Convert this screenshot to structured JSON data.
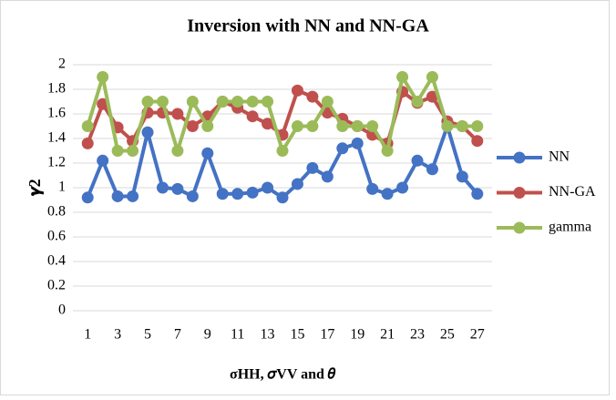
{
  "chart_data": {
    "type": "line",
    "title": "Inversion with NN and NN-GA",
    "x_label": "σHH, 𝜎VV and 𝜃",
    "y_label": "𝜸2",
    "categories": [
      "1",
      null,
      "3",
      null,
      "5",
      null,
      "7",
      null,
      "9",
      null,
      "11",
      null,
      "13",
      null,
      "15",
      null,
      "17",
      null,
      "19",
      null,
      "21",
      null,
      "23",
      null,
      "25",
      null,
      "27"
    ],
    "series": [
      {
        "name": "NN",
        "color": "#4472c4",
        "values": [
          0.92,
          1.22,
          0.93,
          0.93,
          1.45,
          1.0,
          0.99,
          0.93,
          1.28,
          0.95,
          0.95,
          0.96,
          1.0,
          0.92,
          1.03,
          1.16,
          1.09,
          1.32,
          1.36,
          0.99,
          0.95,
          1.0,
          1.22,
          1.15,
          1.5,
          1.09,
          0.95
        ]
      },
      {
        "name": "NN-GA",
        "color": "#c0504d",
        "values": [
          1.36,
          1.68,
          1.49,
          1.38,
          1.61,
          1.61,
          1.6,
          1.5,
          1.58,
          1.7,
          1.65,
          1.58,
          1.52,
          1.43,
          1.79,
          1.74,
          1.61,
          1.56,
          1.5,
          1.43,
          1.36,
          1.78,
          1.69,
          1.74,
          1.54,
          1.5,
          1.38
        ]
      },
      {
        "name": "gamma",
        "color": "#9bbb59",
        "values": [
          1.5,
          1.9,
          1.3,
          1.3,
          1.7,
          1.7,
          1.3,
          1.7,
          1.5,
          1.7,
          1.7,
          1.7,
          1.7,
          1.3,
          1.5,
          1.5,
          1.7,
          1.5,
          1.5,
          1.5,
          1.3,
          1.9,
          1.7,
          1.9,
          1.5,
          1.5,
          1.5
        ]
      }
    ],
    "ylim": [
      0,
      2
    ],
    "yticks": [
      0,
      0.2,
      0.4,
      0.6,
      0.8,
      1,
      1.2,
      1.4,
      1.6,
      1.8,
      2
    ],
    "grid": true,
    "legend": "right"
  }
}
